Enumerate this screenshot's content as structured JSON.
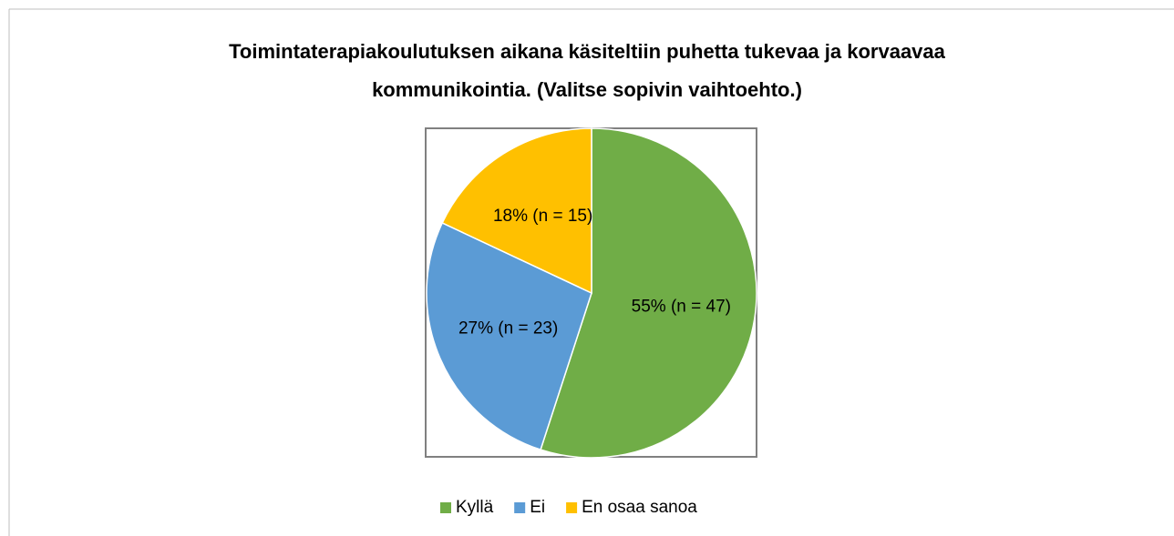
{
  "chart_data": {
    "type": "pie",
    "title": "Toimintaterapiakoulutuksen aikana käsiteltiin puhetta tukevaa ja korvaavaa kommunikointia. (Valitse sopivin vaihtoehto.)",
    "categories": [
      "Kyllä",
      "Ei",
      "En osaa sanoa"
    ],
    "values": [
      55,
      27,
      18
    ],
    "value_labels": [
      "55% (n = 47)",
      "27% (n = 23)",
      "18% (n = 15)"
    ],
    "colors": [
      "#70ad47",
      "#5b9bd5",
      "#ffc000"
    ],
    "legend": "bottom"
  }
}
